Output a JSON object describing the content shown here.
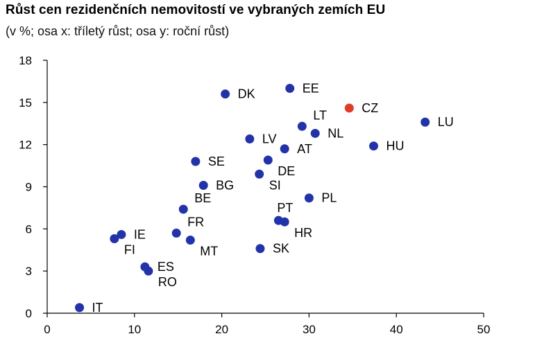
{
  "title": "Růst cen rezidenčních nemovitostí ve vybraných zemích EU",
  "subtitle": "(v %; osa x: tříletý růst; osa y: roční růst)",
  "colors": {
    "default": "#2233aa",
    "highlight": "#e03c28"
  },
  "chart_data": {
    "type": "scatter",
    "title": "Růst cen rezidenčních nemovitostí ve vybraných zemích EU",
    "subtitle": "(v %; osa x: tříletý růst; osa y: roční růst)",
    "xlabel": "tříletý růst",
    "ylabel": "roční růst",
    "xlim": [
      0,
      50
    ],
    "ylim": [
      0,
      18
    ],
    "xticks": [
      0,
      10,
      20,
      30,
      40,
      50
    ],
    "yticks": [
      0,
      3,
      6,
      9,
      12,
      15,
      18
    ],
    "grid": false,
    "points": [
      {
        "label": "IT",
        "x": 3.7,
        "y": 0.4,
        "highlight": false,
        "pos": "right"
      },
      {
        "label": "FI",
        "x": 7.7,
        "y": 5.3,
        "highlight": false,
        "pos": "below-right"
      },
      {
        "label": "IE",
        "x": 8.5,
        "y": 5.6,
        "highlight": false,
        "pos": "right"
      },
      {
        "label": "ES",
        "x": 11.2,
        "y": 3.3,
        "highlight": false,
        "pos": "right"
      },
      {
        "label": "RO",
        "x": 11.6,
        "y": 3.0,
        "highlight": false,
        "pos": "below-right"
      },
      {
        "label": "FR",
        "x": 14.8,
        "y": 5.7,
        "highlight": false,
        "pos": "above-right"
      },
      {
        "label": "MT",
        "x": 16.4,
        "y": 5.2,
        "highlight": false,
        "pos": "below-right"
      },
      {
        "label": "BE",
        "x": 15.6,
        "y": 7.4,
        "highlight": false,
        "pos": "above-right"
      },
      {
        "label": "SE",
        "x": 17.0,
        "y": 10.8,
        "highlight": false,
        "pos": "right"
      },
      {
        "label": "BG",
        "x": 17.9,
        "y": 9.1,
        "highlight": false,
        "pos": "right"
      },
      {
        "label": "DK",
        "x": 20.4,
        "y": 15.6,
        "highlight": false,
        "pos": "right"
      },
      {
        "label": "LV",
        "x": 23.2,
        "y": 12.4,
        "highlight": false,
        "pos": "right"
      },
      {
        "label": "SI",
        "x": 24.3,
        "y": 9.9,
        "highlight": false,
        "pos": "below-right"
      },
      {
        "label": "SK",
        "x": 24.4,
        "y": 4.6,
        "highlight": false,
        "pos": "right"
      },
      {
        "label": "DE",
        "x": 25.3,
        "y": 10.9,
        "highlight": false,
        "pos": "below-right"
      },
      {
        "label": "PT",
        "x": 26.5,
        "y": 6.6,
        "highlight": false,
        "pos": "above"
      },
      {
        "label": "HR",
        "x": 27.2,
        "y": 6.5,
        "highlight": false,
        "pos": "below-right"
      },
      {
        "label": "AT",
        "x": 27.2,
        "y": 11.7,
        "highlight": false,
        "pos": "right"
      },
      {
        "label": "EE",
        "x": 27.8,
        "y": 16.0,
        "highlight": false,
        "pos": "right"
      },
      {
        "label": "LT",
        "x": 29.2,
        "y": 13.3,
        "highlight": false,
        "pos": "above-right"
      },
      {
        "label": "PL",
        "x": 30.0,
        "y": 8.2,
        "highlight": false,
        "pos": "right"
      },
      {
        "label": "NL",
        "x": 30.7,
        "y": 12.8,
        "highlight": false,
        "pos": "right"
      },
      {
        "label": "CZ",
        "x": 34.6,
        "y": 14.6,
        "highlight": true,
        "pos": "right"
      },
      {
        "label": "HU",
        "x": 37.4,
        "y": 11.9,
        "highlight": false,
        "pos": "right"
      },
      {
        "label": "LU",
        "x": 43.3,
        "y": 13.6,
        "highlight": false,
        "pos": "right"
      }
    ]
  }
}
